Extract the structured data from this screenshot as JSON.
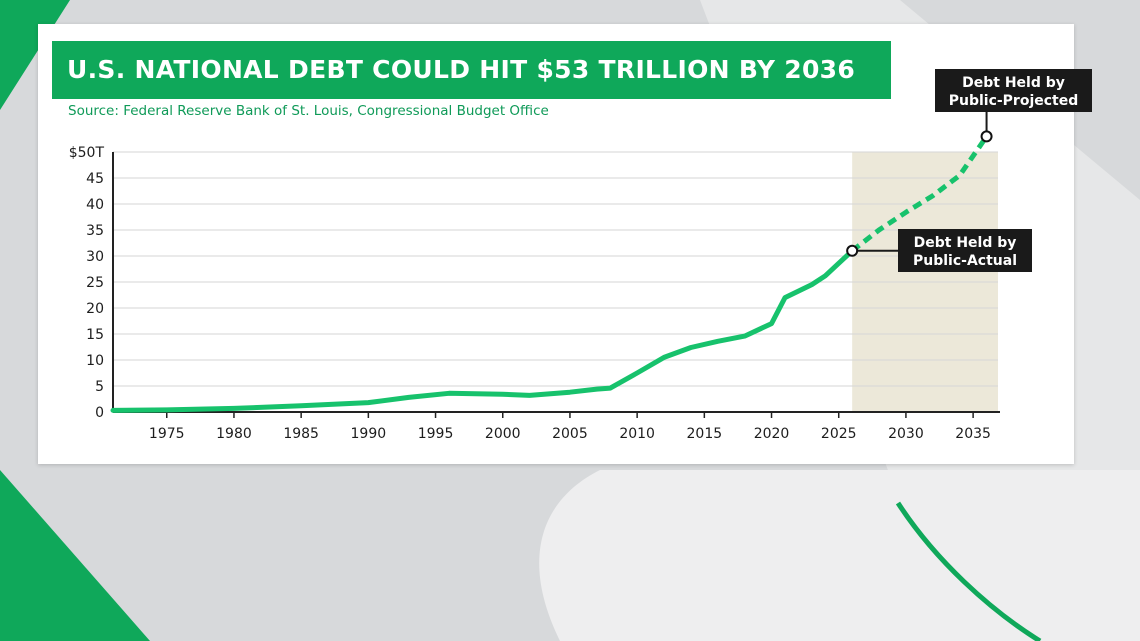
{
  "title": "U.S. NATIONAL DEBT COULD HIT $53 TRILLION BY 2036",
  "source": "Source: Federal Reserve Bank of St. Louis, Congressional Budget Office",
  "colors": {
    "line": "#17c26c",
    "projection_shade": "#ece8d9",
    "banner": "#0fa85a",
    "source_text": "#0f9a58",
    "callout_box": "#1a1a1a"
  },
  "chart_data": {
    "type": "line",
    "title": "U.S. NATIONAL DEBT COULD HIT $53 TRILLION BY 2036",
    "xlabel": "",
    "ylabel": "",
    "xlim": [
      1971,
      2037
    ],
    "ylim": [
      0,
      50
    ],
    "y_ticks": [
      {
        "value": 0,
        "label": "0"
      },
      {
        "value": 5,
        "label": "5"
      },
      {
        "value": 10,
        "label": "10"
      },
      {
        "value": 15,
        "label": "15"
      },
      {
        "value": 20,
        "label": "20"
      },
      {
        "value": 25,
        "label": "25"
      },
      {
        "value": 30,
        "label": "30"
      },
      {
        "value": 35,
        "label": "35"
      },
      {
        "value": 40,
        "label": "40"
      },
      {
        "value": 45,
        "label": "45"
      },
      {
        "value": 50,
        "label": "$50T"
      }
    ],
    "x_ticks": [
      1975,
      1980,
      1985,
      1990,
      1995,
      2000,
      2005,
      2010,
      2015,
      2020,
      2025,
      2030,
      2035
    ],
    "grid": "horizontal",
    "projection_start": 2026,
    "series": [
      {
        "name": "Debt Held by Public-Actual",
        "style": "solid",
        "points": [
          [
            1971,
            0.3
          ],
          [
            1975,
            0.4
          ],
          [
            1980,
            0.7
          ],
          [
            1985,
            1.2
          ],
          [
            1990,
            1.8
          ],
          [
            1993,
            2.8
          ],
          [
            1996,
            3.6
          ],
          [
            2000,
            3.4
          ],
          [
            2002,
            3.2
          ],
          [
            2005,
            3.8
          ],
          [
            2007,
            4.4
          ],
          [
            2008,
            4.6
          ],
          [
            2010,
            7.5
          ],
          [
            2012,
            10.5
          ],
          [
            2014,
            12.4
          ],
          [
            2016,
            13.6
          ],
          [
            2018,
            14.6
          ],
          [
            2020,
            17.0
          ],
          [
            2021,
            22.0
          ],
          [
            2023,
            24.5
          ],
          [
            2024,
            26.2
          ],
          [
            2025,
            28.6
          ],
          [
            2026,
            31.0
          ]
        ]
      },
      {
        "name": "Debt Held by Public-Projected",
        "style": "dashed",
        "points": [
          [
            2026,
            31.0
          ],
          [
            2028,
            35.0
          ],
          [
            2030,
            38.4
          ],
          [
            2032,
            41.6
          ],
          [
            2034,
            45.5
          ],
          [
            2036,
            53.0
          ]
        ]
      }
    ],
    "annotations": [
      {
        "line1": "Debt Held by",
        "line2": "Public-Actual",
        "x": 2026,
        "y": 31.0
      },
      {
        "line1": "Debt Held by",
        "line2": "Public-Projected",
        "x": 2036,
        "y": 53.0
      }
    ]
  }
}
